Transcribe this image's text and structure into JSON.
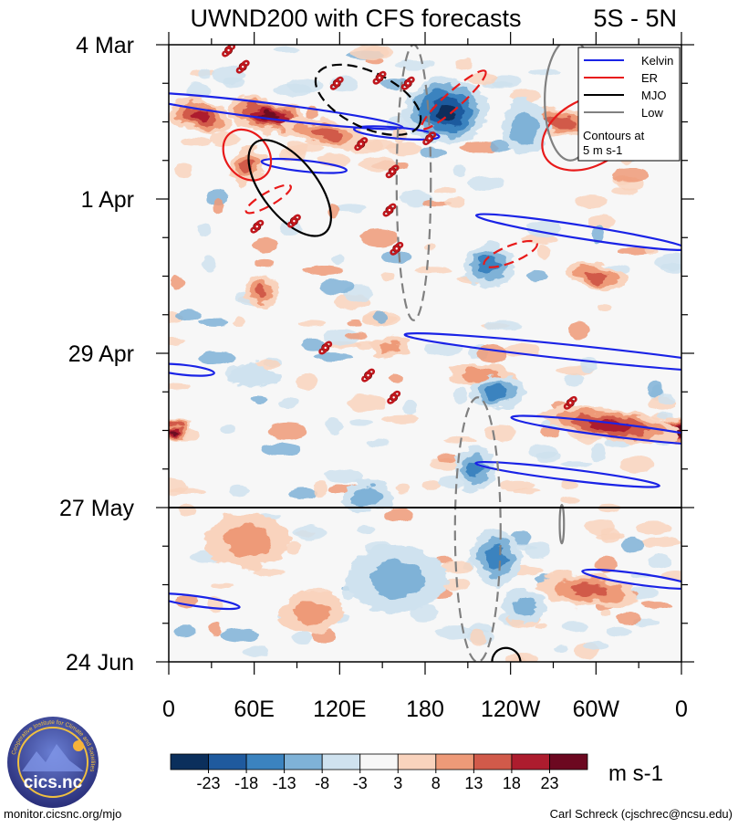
{
  "chart_data": {
    "type": "heatmap",
    "title": "UWND200 with CFS forecasts",
    "region": "5S - 5N",
    "x_ticks": [
      "0",
      "60E",
      "120E",
      "180",
      "120W",
      "60W",
      "0"
    ],
    "x_tick_lon": [
      0,
      60,
      120,
      180,
      240,
      300,
      360
    ],
    "y_ticks": [
      "4 Mar",
      "1 Apr",
      "29 Apr",
      "27 May",
      "24 Jun"
    ],
    "y_tick_day": [
      0,
      28,
      56,
      84,
      112
    ],
    "xlim": [
      0,
      360
    ],
    "ylim_days": [
      0,
      112
    ],
    "forecast_start_day": 84,
    "colorbar": {
      "labels": [
        "-23",
        "-18",
        "-13",
        "-8",
        "-3",
        "3",
        "8",
        "13",
        "18",
        "23"
      ],
      "colors": [
        "#0b2f5c",
        "#1f5a9e",
        "#3b83bf",
        "#7fb2d7",
        "#cfe2ef",
        "#f7f7f7",
        "#f9d3bd",
        "#ee9a78",
        "#d15a4a",
        "#ad1c2e",
        "#6c0820"
      ],
      "units": "m s-1"
    },
    "legend": {
      "entries": [
        {
          "label": "Kelvin",
          "color": "#1a23e6",
          "dash": "solid"
        },
        {
          "label": "ER",
          "color": "#e81a1a",
          "dash": "solid"
        },
        {
          "label": "MJO",
          "color": "#000000",
          "dash": "solid"
        },
        {
          "label": "Low",
          "color": "#808080",
          "dash": "solid"
        }
      ],
      "note_line1": "Contours at",
      "note_line2": "5 m s-1",
      "placement": "top-right"
    },
    "blobs": [
      {
        "lon": 22,
        "day": 13,
        "rlon": 22,
        "rday": 3,
        "v": 18,
        "rot": 14
      },
      {
        "lon": 70,
        "day": 13,
        "rlon": 30,
        "rday": 3,
        "v": 22,
        "rot": 14
      },
      {
        "lon": 110,
        "day": 16,
        "rlon": 30,
        "rday": 2.5,
        "v": 14,
        "rot": 12
      },
      {
        "lon": 55,
        "day": 22,
        "rlon": 12,
        "rday": 3.5,
        "v": 15,
        "rot": 20
      },
      {
        "lon": 325,
        "day": 8,
        "rlon": 28,
        "rday": 6,
        "v": 24,
        "rot": 10
      },
      {
        "lon": 275,
        "day": 14,
        "rlon": 30,
        "rday": 2.5,
        "v": 15,
        "rot": 8
      },
      {
        "lon": 300,
        "day": 42,
        "rlon": 22,
        "rday": 2.5,
        "v": 14,
        "rot": 8
      },
      {
        "lon": 360,
        "day": 70,
        "rlon": 20,
        "rday": 2.5,
        "v": 22,
        "rot": 8
      },
      {
        "lon": 5,
        "day": 70,
        "rlon": 10,
        "rday": 2,
        "v": 22,
        "rot": 0
      },
      {
        "lon": 310,
        "day": 69,
        "rlon": 50,
        "rday": 3,
        "v": 17,
        "rot": 8
      },
      {
        "lon": 295,
        "day": 99,
        "rlon": 35,
        "rday": 3,
        "v": 15,
        "rot": 6
      },
      {
        "lon": 65,
        "day": 45,
        "rlon": 12,
        "rday": 3,
        "v": 12,
        "rot": 0
      },
      {
        "lon": 155,
        "day": 55,
        "rlon": 14,
        "rday": 2,
        "v": 10,
        "rot": 0
      },
      {
        "lon": 100,
        "day": 103,
        "rlon": 22,
        "rday": 4,
        "v": 9,
        "rot": 0
      },
      {
        "lon": 55,
        "day": 90,
        "rlon": 30,
        "rday": 5,
        "v": 7,
        "rot": 0
      },
      {
        "lon": 220,
        "day": 60,
        "rlon": 25,
        "rday": 2,
        "v": 10,
        "rot": 8
      },
      {
        "lon": 195,
        "day": 12,
        "rlon": 30,
        "rday": 6,
        "v": -22,
        "rot": 0
      },
      {
        "lon": 250,
        "day": 15,
        "rlon": 16,
        "rday": 5,
        "v": -10,
        "rot": 0
      },
      {
        "lon": 225,
        "day": 40,
        "rlon": 18,
        "rday": 4,
        "v": -11,
        "rot": 0
      },
      {
        "lon": 230,
        "day": 63,
        "rlon": 20,
        "rday": 3,
        "v": -13,
        "rot": 0
      },
      {
        "lon": 215,
        "day": 77,
        "rlon": 14,
        "rday": 4,
        "v": -12,
        "rot": 0
      },
      {
        "lon": 230,
        "day": 93,
        "rlon": 18,
        "rday": 5,
        "v": -15,
        "rot": 0
      },
      {
        "lon": 250,
        "day": 102,
        "rlon": 16,
        "rday": 3,
        "v": -10,
        "rot": 0
      },
      {
        "lon": 160,
        "day": 97,
        "rlon": 35,
        "rday": 6,
        "v": -6,
        "rot": 0
      },
      {
        "lon": 140,
        "day": 82,
        "rlon": 18,
        "rday": 3,
        "v": -6,
        "rot": 0
      },
      {
        "lon": 60,
        "day": 60,
        "rlon": 18,
        "rday": 2,
        "v": -5,
        "rot": 0
      }
    ],
    "contours": [
      {
        "kind": "kelvin",
        "dash": false,
        "lon": 70,
        "day": 12,
        "rlon": 95,
        "rday": 1.4,
        "rot": 7
      },
      {
        "kind": "kelvin",
        "dash": false,
        "lon": 160,
        "day": 16,
        "rlon": 30,
        "rday": 1,
        "rot": 5
      },
      {
        "kind": "kelvin",
        "dash": false,
        "lon": 95,
        "day": 22,
        "rlon": 30,
        "rday": 1,
        "rot": 6
      },
      {
        "kind": "kelvin",
        "dash": false,
        "lon": 290,
        "day": 34,
        "rlon": 75,
        "rday": 1.2,
        "rot": 9
      },
      {
        "kind": "kelvin",
        "dash": false,
        "lon": 290,
        "day": 56,
        "rlon": 125,
        "rday": 1.3,
        "rot": 6
      },
      {
        "kind": "kelvin",
        "dash": false,
        "lon": 315,
        "day": 70,
        "rlon": 75,
        "rday": 1.2,
        "rot": 7
      },
      {
        "kind": "kelvin",
        "dash": false,
        "lon": 280,
        "day": 78,
        "rlon": 65,
        "rday": 1,
        "rot": 7
      },
      {
        "kind": "kelvin",
        "dash": false,
        "lon": 330,
        "day": 97,
        "rlon": 40,
        "rday": 1,
        "rot": 8
      },
      {
        "kind": "kelvin",
        "dash": false,
        "lon": 20,
        "day": 101,
        "rlon": 30,
        "rday": 0.9,
        "rot": 8
      },
      {
        "kind": "kelvin",
        "dash": false,
        "lon": 10,
        "day": 59,
        "rlon": 22,
        "rday": 0.9,
        "rot": 6
      },
      {
        "kind": "er",
        "dash": false,
        "lon": 55,
        "day": 20,
        "rlon": 15,
        "rday": 5,
        "rot": -38
      },
      {
        "kind": "er",
        "dash": false,
        "lon": 295,
        "day": 16,
        "rlon": 35,
        "rday": 6,
        "rot": -28
      },
      {
        "kind": "er",
        "dash": true,
        "lon": 200,
        "day": 10,
        "rlon": 30,
        "rday": 1.5,
        "rot": -42
      },
      {
        "kind": "er",
        "dash": true,
        "lon": 240,
        "day": 38,
        "rlon": 20,
        "rday": 1.5,
        "rot": -22
      },
      {
        "kind": "er",
        "dash": true,
        "lon": 70,
        "day": 28,
        "rlon": 18,
        "rday": 1.2,
        "rot": -30
      },
      {
        "kind": "mjo",
        "dash": false,
        "lon": 85,
        "day": 26,
        "rlon": 40,
        "rday": 5,
        "rot": 52
      },
      {
        "kind": "mjo",
        "dash": true,
        "lon": 140,
        "day": 10,
        "rlon": 40,
        "rday": 5,
        "rot": 26
      },
      {
        "kind": "mjo",
        "dash": false,
        "lon": 237,
        "day": 112,
        "rlon": 10,
        "rday": 2.5,
        "rot": 30
      },
      {
        "kind": "low",
        "dash": true,
        "lon": 172,
        "day": 25,
        "rlon": 12,
        "rday": 25,
        "rot": 0
      },
      {
        "kind": "low",
        "dash": true,
        "lon": 217,
        "day": 88,
        "rlon": 16,
        "rday": 24,
        "rot": 0
      },
      {
        "kind": "low",
        "dash": false,
        "lon": 282,
        "day": 10,
        "rlon": 18,
        "rday": 11,
        "rot": 0
      },
      {
        "kind": "low",
        "dash": false,
        "lon": 276,
        "day": 87,
        "rlon": 1.5,
        "rday": 3.5,
        "rot": 0
      }
    ],
    "tropical_cyclones": [
      {
        "lon": 42,
        "day": 1
      },
      {
        "lon": 52,
        "day": 4
      },
      {
        "lon": 118,
        "day": 7
      },
      {
        "lon": 148,
        "day": 6
      },
      {
        "lon": 168,
        "day": 7
      },
      {
        "lon": 183,
        "day": 17
      },
      {
        "lon": 135,
        "day": 18
      },
      {
        "lon": 157,
        "day": 23
      },
      {
        "lon": 155,
        "day": 30
      },
      {
        "lon": 62,
        "day": 33
      },
      {
        "lon": 88,
        "day": 32
      },
      {
        "lon": 160,
        "day": 37
      },
      {
        "lon": 110,
        "day": 55
      },
      {
        "lon": 140,
        "day": 60
      },
      {
        "lon": 158,
        "day": 64
      },
      {
        "lon": 282,
        "day": 65
      }
    ]
  },
  "footer": {
    "left": "monitor.cicsnc.org/mjo",
    "right": "Carl Schreck (cjschrec@ncsu.edu)"
  },
  "logo": {
    "text": "cics.nc",
    "ring_text": "Cooperative Institute for Climate and Satellites"
  }
}
